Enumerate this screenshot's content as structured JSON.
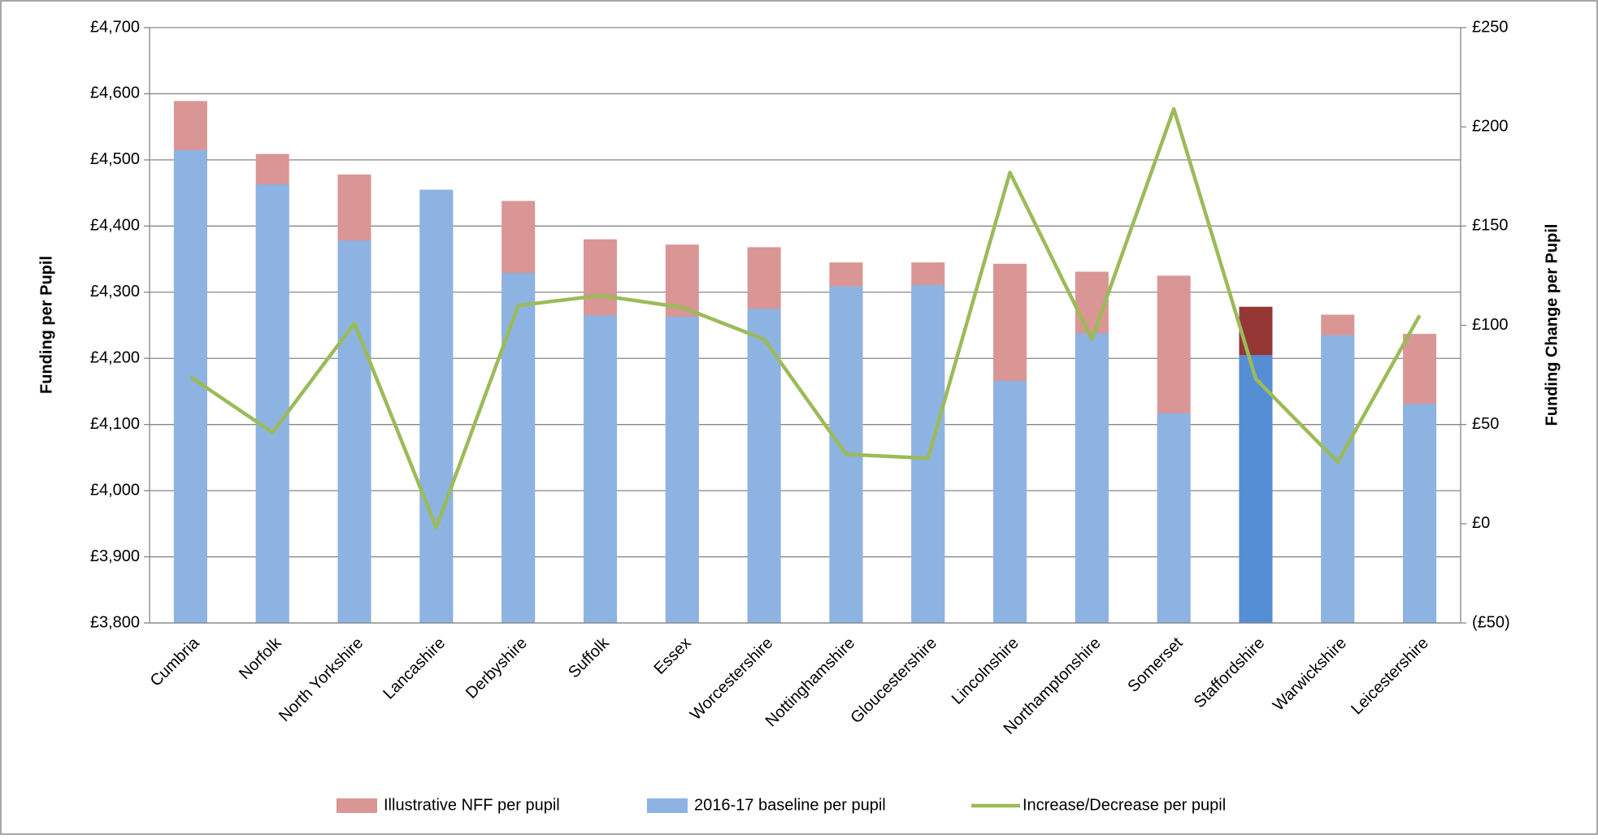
{
  "chart_data": {
    "type": "bar-line",
    "categories": [
      "Cumbria",
      "Norfolk",
      "North Yorkshire",
      "Lancashire",
      "Derbyshire",
      "Suffolk",
      "Essex",
      "Worcestershire",
      "Nottinghamshire",
      "Gloucestershire",
      "Lincolnshire",
      "Northamptonshire",
      "Somerset",
      "Staffordshire",
      "Warwickshire",
      "Leicestershire"
    ],
    "y_label": "Funding per Pupil",
    "y2_label": "Funding Change per Pupil",
    "ylim": [
      3800,
      4700
    ],
    "yticks": [
      {
        "value": 3800,
        "label": "£3,800"
      },
      {
        "value": 3900,
        "label": "£3,900"
      },
      {
        "value": 4000,
        "label": "£4,000"
      },
      {
        "value": 4100,
        "label": "£4,100"
      },
      {
        "value": 4200,
        "label": "£4,200"
      },
      {
        "value": 4300,
        "label": "£4,300"
      },
      {
        "value": 4400,
        "label": "£4,400"
      },
      {
        "value": 4500,
        "label": "£4,500"
      },
      {
        "value": 4600,
        "label": "£4,600"
      },
      {
        "value": 4700,
        "label": "£4,700"
      }
    ],
    "y2lim": [
      -50,
      250
    ],
    "y2ticks": [
      {
        "value": -50,
        "label": "(£50)"
      },
      {
        "value": 0,
        "label": "£0"
      },
      {
        "value": 50,
        "label": "£50"
      },
      {
        "value": 100,
        "label": "£100"
      },
      {
        "value": 150,
        "label": "£150"
      },
      {
        "value": 200,
        "label": "£200"
      },
      {
        "value": 250,
        "label": "£250"
      }
    ],
    "grid": true,
    "legend": "bottom",
    "series": [
      {
        "name": "Illustrative NFF per pupil",
        "type": "bar",
        "color": "#d99694",
        "colors": [
          "#d99694",
          "#d99694",
          "#d99694",
          "#d99694",
          "#d99694",
          "#d99694",
          "#d99694",
          "#d99694",
          "#d99694",
          "#d99694",
          "#d99694",
          "#d99694",
          "#d99694",
          "#953735",
          "#d99694",
          "#d99694"
        ],
        "values": [
          4589,
          4509,
          4478,
          4453,
          4438,
          4380,
          4372,
          4368,
          4345,
          4345,
          4343,
          4331,
          4325,
          4278,
          4266,
          4237
        ]
      },
      {
        "name": "2016-17 baseline per pupil",
        "type": "bar",
        "color": "#8db3e2",
        "colors": [
          "#8db3e2",
          "#8db3e2",
          "#8db3e2",
          "#8db3e2",
          "#8db3e2",
          "#8db3e2",
          "#8db3e2",
          "#8db3e2",
          "#8db3e2",
          "#8db3e2",
          "#8db3e2",
          "#8db3e2",
          "#8db3e2",
          "#558ed5",
          "#8db3e2",
          "#8db3e2"
        ],
        "values": [
          4515,
          4463,
          4378,
          4455,
          4329,
          4265,
          4263,
          4275,
          4309,
          4311,
          4166,
          4238,
          4117,
          4205,
          4235,
          4131
        ]
      },
      {
        "name": "Increase/Decrease per pupil",
        "type": "line",
        "axis": "y2",
        "color": "#9bbb59",
        "values": [
          74,
          46,
          101,
          -2,
          110,
          115,
          109,
          93,
          35,
          33,
          177,
          93,
          209,
          73,
          31,
          105
        ]
      }
    ]
  }
}
